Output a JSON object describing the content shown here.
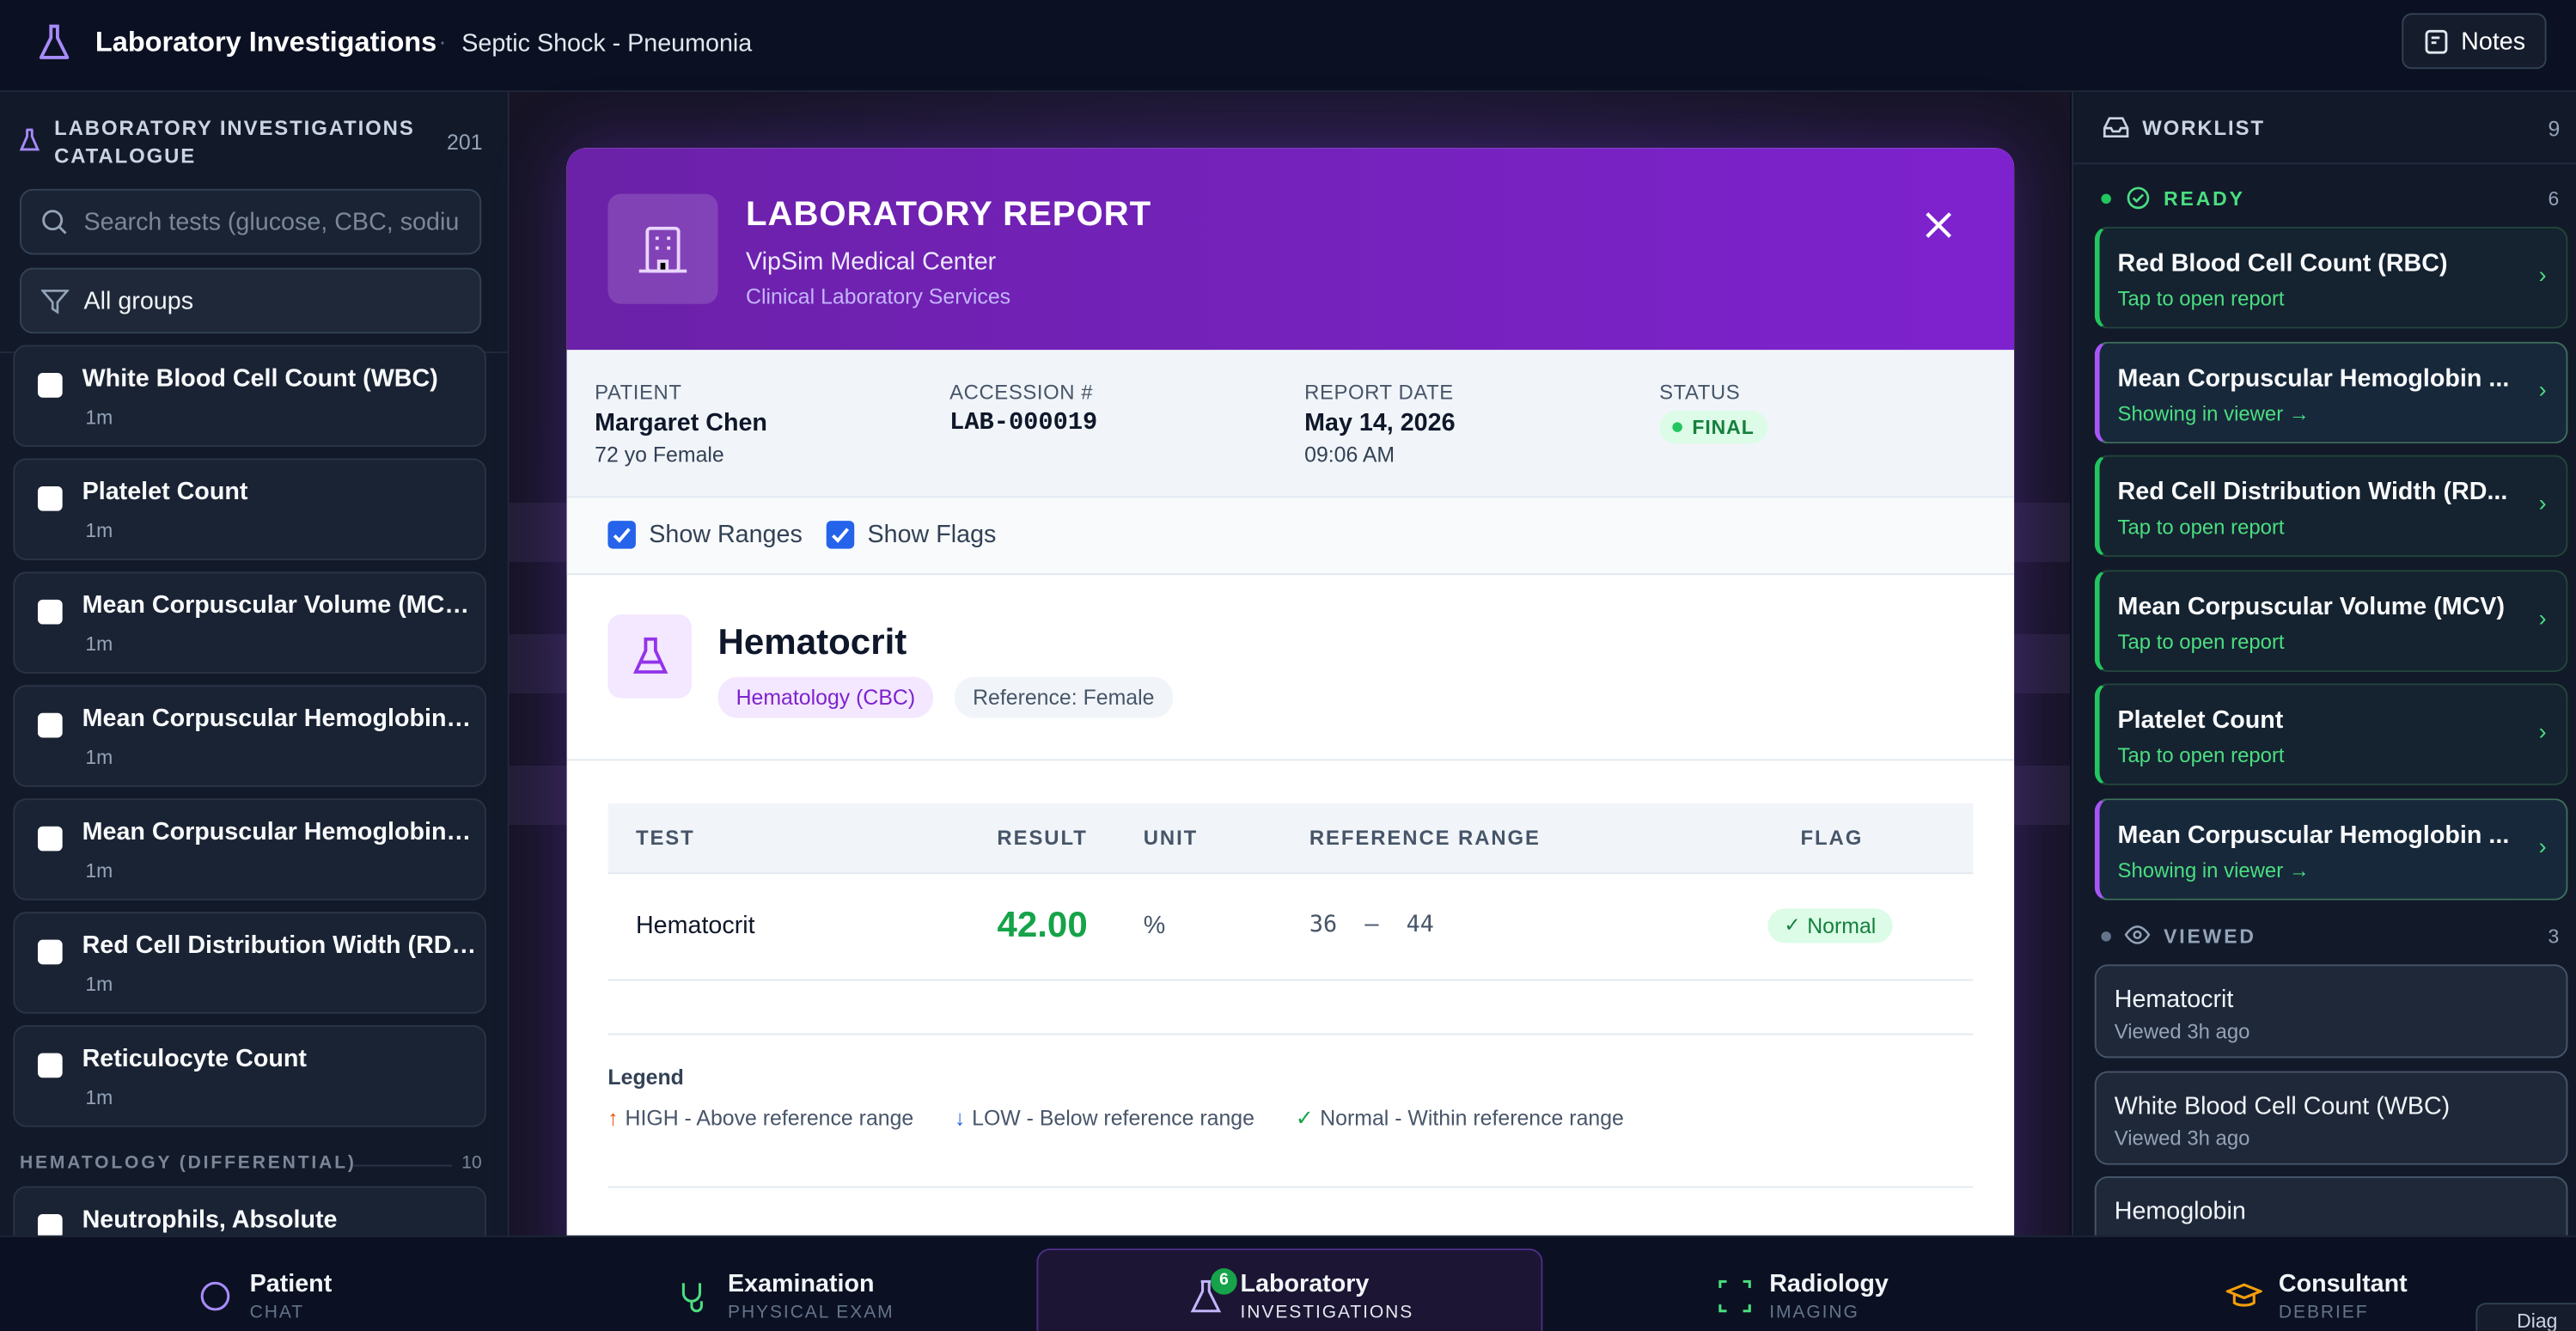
{
  "header": {
    "title": "Laboratory Investigations",
    "subtitle": "Septic Shock - Pneumonia",
    "notes": "Notes"
  },
  "catalogue": {
    "title": "LABORATORY INVESTIGATIONS CATALOGUE",
    "count": 201,
    "search_placeholder": "Search tests (glucose, CBC, sodiu",
    "filter": "All groups",
    "items": [
      {
        "name": "White Blood Cell Count (WBC)",
        "time": "1m"
      },
      {
        "name": "Platelet Count",
        "time": "1m"
      },
      {
        "name": "Mean Corpuscular Volume (MC…",
        "time": "1m"
      },
      {
        "name": "Mean Corpuscular Hemoglobin…",
        "time": "1m"
      },
      {
        "name": "Mean Corpuscular Hemoglobin…",
        "time": "1m"
      },
      {
        "name": "Red Cell Distribution Width (RD…",
        "time": "1m"
      },
      {
        "name": "Reticulocyte Count",
        "time": "1m"
      }
    ],
    "group": {
      "name": "HEMATOLOGY (DIFFERENTIAL)",
      "count": 10,
      "items": [
        {
          "name": "Neutrophils, Absolute"
        }
      ]
    }
  },
  "report": {
    "title": "LABORATORY REPORT",
    "org": "VipSim Medical Center",
    "dept": "Clinical Laboratory Services",
    "meta": [
      {
        "label": "PATIENT",
        "value": "Margaret Chen",
        "sub": "72 yo Female"
      },
      {
        "label": "ACCESSION #",
        "value": "LAB-000019"
      },
      {
        "label": "REPORT DATE",
        "value": "May 14, 2026",
        "sub": "09:06 AM"
      },
      {
        "label": "STATUS",
        "value": "FINAL"
      }
    ],
    "options": [
      "Show Ranges",
      "Show Flags"
    ],
    "test": {
      "name": "Hematocrit",
      "tags": [
        "Hematology (CBC)",
        "Reference: Female"
      ]
    },
    "table": {
      "headers": [
        "TEST",
        "RESULT",
        "UNIT",
        "REFERENCE RANGE",
        "FLAG"
      ],
      "rows": [
        [
          "Hematocrit",
          "42.00",
          "%",
          "36  –  44",
          "Normal"
        ]
      ]
    },
    "legend": {
      "title": "Legend",
      "items": [
        "HIGH - Above reference range",
        "LOW - Below reference range",
        "Normal - Within reference range"
      ]
    }
  },
  "worklist": {
    "title": "WORKLIST",
    "count": 9,
    "ready": {
      "label": "READY",
      "count": 6,
      "items": [
        {
          "name": "Red Blood Cell Count (RBC)",
          "sub": "Tap to open report"
        },
        {
          "name": "Mean Corpuscular Hemoglobin ...",
          "sub": "Showing in viewer →",
          "active": true
        },
        {
          "name": "Red Cell Distribution Width (RD...",
          "sub": "Tap to open report"
        },
        {
          "name": "Mean Corpuscular Volume (MCV)",
          "sub": "Tap to open report"
        },
        {
          "name": "Platelet Count",
          "sub": "Tap to open report"
        },
        {
          "name": "Mean Corpuscular Hemoglobin ...",
          "sub": "Showing in viewer →",
          "active": true
        }
      ]
    },
    "viewed": {
      "label": "VIEWED",
      "count": 3,
      "items": [
        {
          "name": "Hematocrit",
          "sub": "Viewed 3h ago"
        },
        {
          "name": "White Blood Cell Count (WBC)",
          "sub": "Viewed 3h ago"
        },
        {
          "name": "Hemoglobin"
        }
      ]
    }
  },
  "nav": {
    "tabs": [
      {
        "label": "Patient",
        "sub": "CHAT"
      },
      {
        "label": "Examination",
        "sub": "PHYSICAL EXAM"
      },
      {
        "label": "Laboratory",
        "sub": "INVESTIGATIONS",
        "badge": 6,
        "active": true
      },
      {
        "label": "Radiology",
        "sub": "IMAGING"
      },
      {
        "label": "Consultant",
        "sub": "DEBRIEF"
      }
    ],
    "diag": "Diag"
  }
}
